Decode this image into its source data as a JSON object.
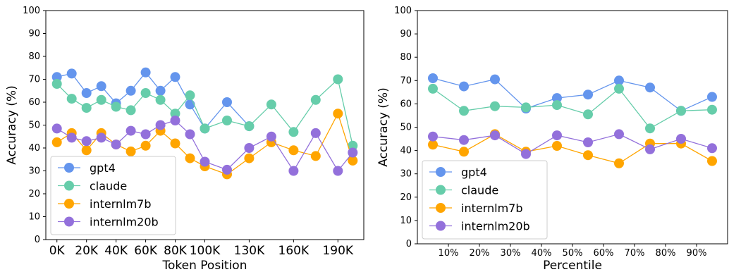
{
  "chart_data": [
    {
      "type": "line",
      "xlabel": "Token Position",
      "ylabel": "Accuracy (%)",
      "ylim": [
        0,
        100
      ],
      "xlim": [
        -7.5,
        207.5
      ],
      "yticks": [
        0,
        10,
        20,
        30,
        40,
        50,
        60,
        70,
        80,
        90,
        100
      ],
      "xticks": [
        {
          "value": 0,
          "label": "0K"
        },
        {
          "value": 20,
          "label": "20K"
        },
        {
          "value": 40,
          "label": "40K"
        },
        {
          "value": 60,
          "label": "60K"
        },
        {
          "value": 80,
          "label": "80K"
        },
        {
          "value": 100,
          "label": "100K"
        },
        {
          "value": 130,
          "label": "130K"
        },
        {
          "value": 160,
          "label": "160K"
        },
        {
          "value": 190,
          "label": "190K"
        }
      ],
      "x": [
        0,
        10,
        20,
        30,
        40,
        50,
        60,
        70,
        80,
        90,
        100,
        115,
        130,
        145,
        160,
        175,
        190,
        200
      ],
      "legend_position": "lower-left",
      "series": [
        {
          "name": "gpt4",
          "color": "#6495ED",
          "values": [
            71,
            72.5,
            64,
            67,
            59.5,
            65,
            73,
            65,
            71,
            59,
            48.5,
            60,
            49.5,
            null,
            null,
            null,
            null,
            null
          ]
        },
        {
          "name": "claude",
          "color": "#66CDAA",
          "values": [
            68,
            61.5,
            57.5,
            61,
            58,
            56.5,
            64,
            61,
            55,
            63,
            48.5,
            52,
            49.5,
            59,
            47,
            61,
            70,
            41
          ]
        },
        {
          "name": "internlm7b",
          "color": "#FFA500",
          "values": [
            42.5,
            46.5,
            39,
            46.5,
            41.5,
            38.5,
            41,
            47.5,
            42,
            35.5,
            32,
            28.5,
            35.5,
            42.5,
            39,
            36.5,
            55,
            34.5
          ]
        },
        {
          "name": "internlm20b",
          "color": "#9370DB",
          "values": [
            48.5,
            44.5,
            43,
            44.5,
            41.5,
            47.5,
            46,
            50,
            52,
            46,
            34,
            30.5,
            40,
            45,
            30,
            46.5,
            30,
            38
          ]
        }
      ]
    },
    {
      "type": "line",
      "xlabel": "Percentile",
      "ylabel": "Accuracy (%)",
      "ylim": [
        0,
        100
      ],
      "xlim": [
        0,
        100
      ],
      "yticks": [
        0,
        10,
        20,
        30,
        40,
        50,
        60,
        70,
        80,
        90,
        100
      ],
      "xticks": [
        {
          "value": 10,
          "label": "10%"
        },
        {
          "value": 20,
          "label": "20%"
        },
        {
          "value": 30,
          "label": "30%"
        },
        {
          "value": 40,
          "label": "40%"
        },
        {
          "value": 50,
          "label": "50%"
        },
        {
          "value": 60,
          "label": "60%"
        },
        {
          "value": 70,
          "label": "70%"
        },
        {
          "value": 80,
          "label": "80%"
        },
        {
          "value": 90,
          "label": "90%"
        }
      ],
      "x": [
        5,
        15,
        25,
        35,
        45,
        55,
        65,
        75,
        85,
        95
      ],
      "legend_position": "lower-left",
      "series": [
        {
          "name": "gpt4",
          "color": "#6495ED",
          "values": [
            71,
            67.5,
            70.5,
            58,
            62.5,
            64,
            70,
            67,
            57,
            63
          ]
        },
        {
          "name": "claude",
          "color": "#66CDAA",
          "values": [
            66.5,
            57,
            59,
            58.5,
            59.5,
            55.5,
            66.5,
            49.5,
            57,
            57.5
          ]
        },
        {
          "name": "internlm7b",
          "color": "#FFA500",
          "values": [
            42.5,
            39.5,
            47,
            39.5,
            42,
            38,
            34.5,
            43,
            43,
            35.5
          ]
        },
        {
          "name": "internlm20b",
          "color": "#9370DB",
          "values": [
            46,
            44.5,
            46.5,
            38.5,
            46.5,
            43.5,
            47,
            40.5,
            45,
            41
          ]
        }
      ]
    }
  ]
}
